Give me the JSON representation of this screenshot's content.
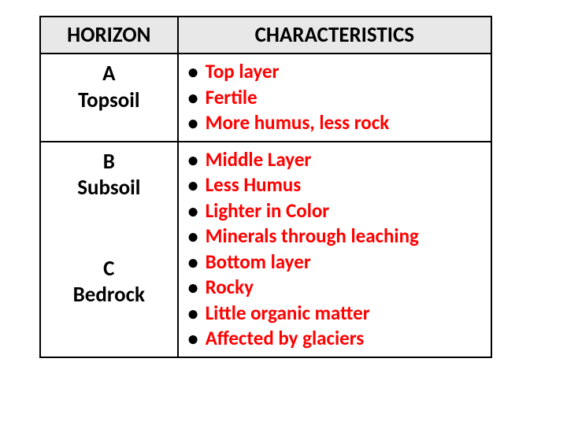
{
  "table": {
    "headers": {
      "horizon": "HORIZON",
      "characteristics": "CHARACTERISTICS"
    },
    "rows": [
      {
        "horizon_letter": "A",
        "horizon_name": "Topsoil",
        "items": [
          "Top layer",
          "Fertile",
          "More humus, less rock"
        ]
      },
      {
        "horizon_letter": "B",
        "horizon_name": "Subsoil",
        "items": [
          "Middle Layer",
          "Less Humus",
          "Lighter in Color",
          "Minerals through leaching"
        ]
      },
      {
        "horizon_letter": "C",
        "horizon_name": "Bedrock",
        "items": [
          "Bottom layer",
          "Rocky",
          "Little organic matter",
          "Affected by glaciers"
        ]
      }
    ],
    "colors": {
      "header_bg": "#e8e8e8",
      "border": "#000000",
      "text_black": "#000000",
      "text_red": "#ff0000",
      "background": "#ffffff"
    },
    "font_sizes": {
      "header": 27,
      "horizon": 27,
      "char": 25
    }
  }
}
